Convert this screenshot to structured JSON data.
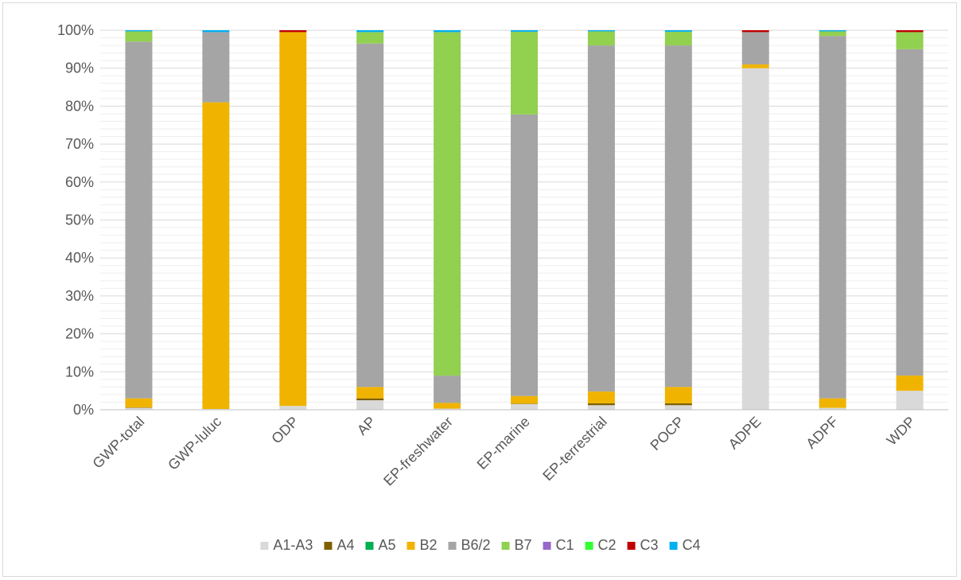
{
  "chart_data": {
    "type": "bar",
    "stacked": true,
    "percent": true,
    "title": "",
    "xlabel": "",
    "ylabel": "",
    "ylim": [
      0,
      100
    ],
    "y_ticks": [
      "0%",
      "10%",
      "20%",
      "30%",
      "40%",
      "50%",
      "60%",
      "70%",
      "80%",
      "90%",
      "100%"
    ],
    "grid": true,
    "legend_position": "bottom",
    "categories": [
      "GWP-total",
      "GWP-luluc",
      "ODP",
      "AP",
      "EP-freshwater",
      "EP-marine",
      "EP-terrestrial",
      "POCP",
      "ADPE",
      "ADPF",
      "WDP"
    ],
    "series": [
      {
        "name": "A1-A3",
        "color": "#d9d9d9",
        "values": [
          0.5,
          0.2,
          1.0,
          2.5,
          0.3,
          1.5,
          1.2,
          1.2,
          90.0,
          0.5,
          5.0
        ]
      },
      {
        "name": "A4",
        "color": "#7f6000",
        "values": [
          0.1,
          0.0,
          0.0,
          0.5,
          0.0,
          0.1,
          0.5,
          0.5,
          0.0,
          0.0,
          0.0
        ]
      },
      {
        "name": "A5",
        "color": "#00b050",
        "values": [
          0.0,
          0.0,
          0.0,
          0.0,
          0.0,
          0.0,
          0.0,
          0.0,
          0.0,
          0.0,
          0.0
        ]
      },
      {
        "name": "B2",
        "color": "#f0b400",
        "values": [
          2.4,
          80.8,
          98.5,
          3.0,
          1.5,
          2.0,
          3.1,
          4.3,
          1.0,
          2.5,
          4.0
        ]
      },
      {
        "name": "B6/2",
        "color": "#a5a5a5",
        "values": [
          94.0,
          18.5,
          0.0,
          90.5,
          7.2,
          74.2,
          91.2,
          90.0,
          8.5,
          95.5,
          86.0
        ]
      },
      {
        "name": "B7",
        "color": "#92d050",
        "values": [
          2.7,
          0.0,
          0.0,
          3.0,
          90.5,
          21.8,
          3.7,
          3.6,
          0.0,
          1.2,
          4.5
        ]
      },
      {
        "name": "C1",
        "color": "#9966cc",
        "values": [
          0.0,
          0.0,
          0.0,
          0.0,
          0.0,
          0.0,
          0.0,
          0.0,
          0.0,
          0.0,
          0.0
        ]
      },
      {
        "name": "C2",
        "color": "#33ff33",
        "values": [
          0.0,
          0.0,
          0.0,
          0.0,
          0.0,
          0.0,
          0.0,
          0.0,
          0.0,
          0.0,
          0.0
        ]
      },
      {
        "name": "C3",
        "color": "#c00000",
        "values": [
          0.0,
          0.0,
          0.5,
          0.0,
          0.0,
          0.0,
          0.0,
          0.0,
          0.5,
          0.0,
          0.5
        ]
      },
      {
        "name": "C4",
        "color": "#00b0f0",
        "values": [
          0.3,
          0.5,
          0.0,
          0.5,
          0.5,
          0.4,
          0.3,
          0.4,
          0.0,
          0.3,
          0.0
        ]
      }
    ]
  }
}
